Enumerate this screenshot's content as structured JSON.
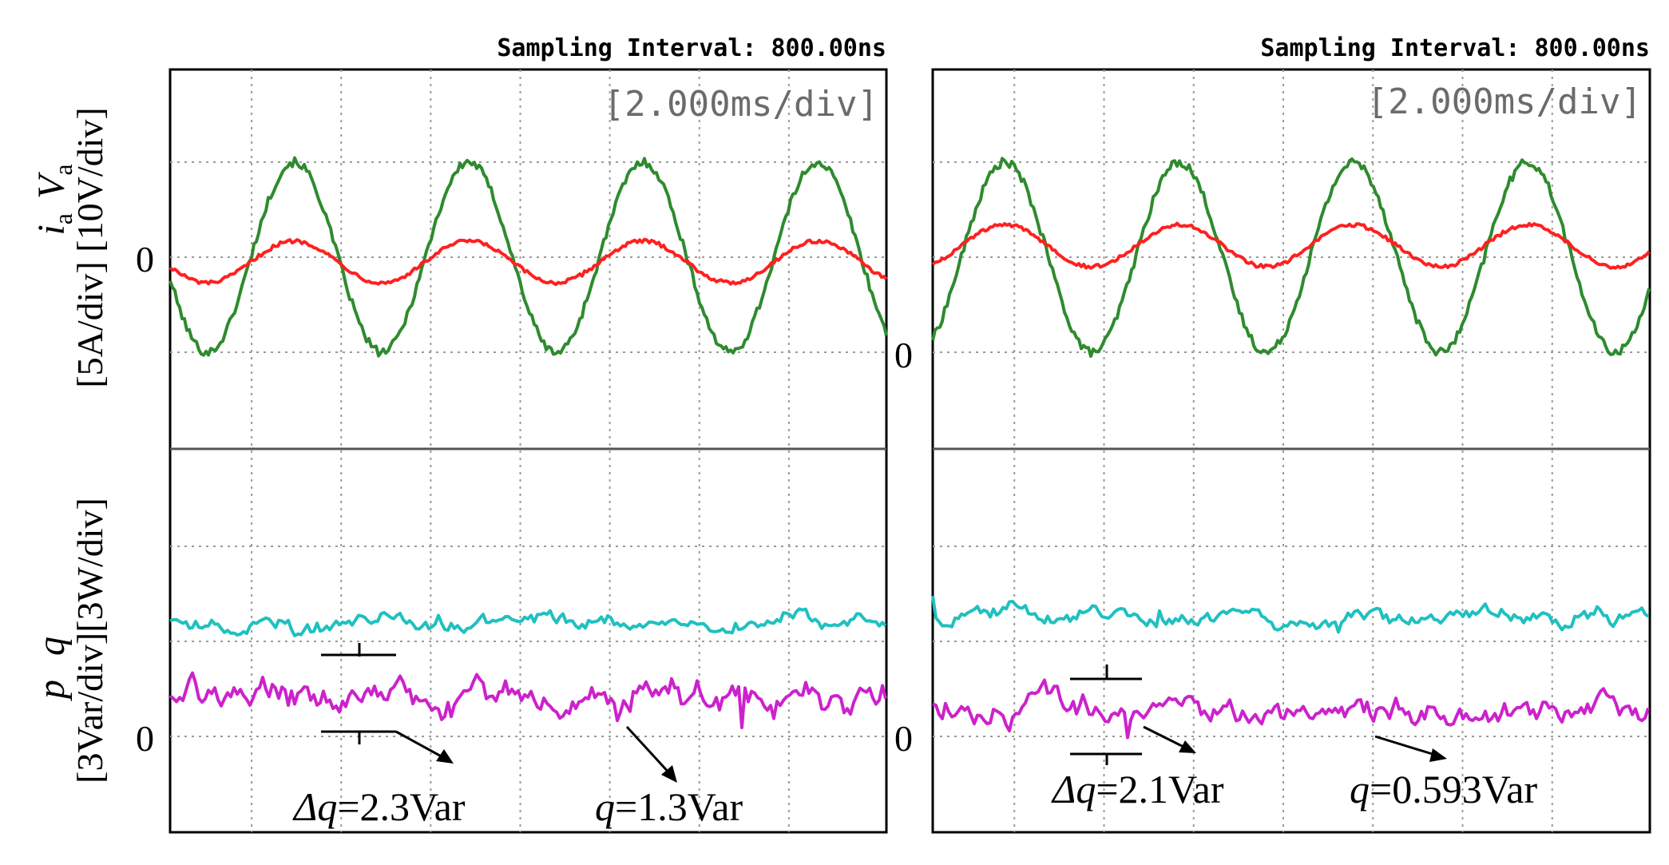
{
  "figure": {
    "y_axis_labels": {
      "top": {
        "var1": "i",
        "var1_sub": "a",
        "var2": "V",
        "var2_sub": "a",
        "units": "[5A/div] [10V/div]"
      },
      "bottom": {
        "var1": "p",
        "var2": "q",
        "units": "[3Var/div][3W/div]"
      }
    }
  },
  "chart_data": [
    {
      "id": "left",
      "type": "line",
      "header": "Sampling Interval:  800.00ns",
      "timebase": "[2.000ms/div]",
      "top": {
        "title": "ia Va",
        "zero_labels": [
          {
            "text": "0",
            "value": 0
          }
        ],
        "series": [
          {
            "name": "Va",
            "color": "#2e8b2e",
            "unit": "V",
            "amplitude": 1.0,
            "freq_cycles_per_div": 0.545,
            "phase_div": 0.85,
            "offset": 0.0,
            "noise": 0.09
          },
          {
            "name": "ia",
            "color": "#ff2020",
            "unit": "A",
            "amplitude": 0.22,
            "freq_cycles_per_div": 0.545,
            "phase_div": 0.85,
            "offset": -0.05,
            "noise": 0.04
          }
        ]
      },
      "bottom": {
        "title": "p q",
        "zero_labels": [
          {
            "text": "0",
            "value": 0
          }
        ],
        "series": [
          {
            "name": "p",
            "color": "#20c0c0",
            "unit": "W",
            "level": 1.18,
            "noise": 0.12
          },
          {
            "name": "q",
            "color": "#cc22cc",
            "unit": "Var",
            "level": 0.45,
            "noise": 0.22
          }
        ],
        "annotations": [
          {
            "label_var": "Δq",
            "label_value": "=2.3Var"
          },
          {
            "label_var": "q",
            "label_value": "=1.3Var"
          }
        ]
      }
    },
    {
      "id": "right",
      "type": "line",
      "header": "Sampling Interval:  800.00ns",
      "timebase": "[2.000ms/div]",
      "top": {
        "title": "ia Va",
        "zero_labels": [
          {
            "text": "0",
            "value": -1.0
          }
        ],
        "series": [
          {
            "name": "Va",
            "color": "#2e8b2e",
            "unit": "V",
            "amplitude": 1.0,
            "freq_cycles_per_div": 0.545,
            "phase_div": 0.3,
            "offset": 0.0,
            "noise": 0.09
          },
          {
            "name": "ia",
            "color": "#ff2020",
            "unit": "A",
            "amplitude": 0.22,
            "freq_cycles_per_div": 0.545,
            "phase_div": 0.3,
            "offset": 0.12,
            "noise": 0.04
          }
        ]
      },
      "bottom": {
        "title": "p q",
        "zero_labels": [
          {
            "text": "0",
            "value": 0
          }
        ],
        "series": [
          {
            "name": "p",
            "color": "#20c0c0",
            "unit": "W",
            "level": 1.28,
            "noise": 0.12
          },
          {
            "name": "q",
            "color": "#cc22cc",
            "unit": "Var",
            "level": 0.28,
            "noise": 0.2
          }
        ],
        "annotations": [
          {
            "label_var": "Δq",
            "label_value": "=2.1Var"
          },
          {
            "label_var": "q",
            "label_value": "=0.593Var"
          }
        ]
      }
    }
  ]
}
